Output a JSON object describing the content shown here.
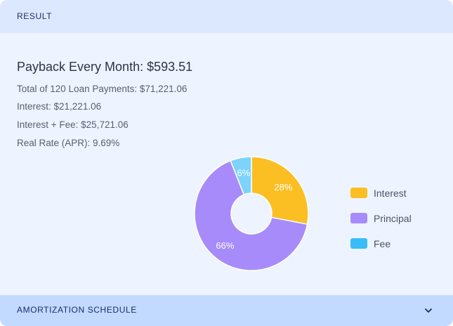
{
  "result": {
    "header": "RESULT",
    "payback": "Payback Every Month: $593.51",
    "total_payments": "Total of 120 Loan Payments: $71,221.06",
    "interest": "Interest: $21,221.06",
    "interest_fee": "Interest + Fee: $25,721.06",
    "apr": "Real Rate (APR): 9.69%"
  },
  "chart_data": {
    "type": "pie",
    "donut": true,
    "categories": [
      "Interest",
      "Principal",
      "Fee"
    ],
    "values": [
      28,
      66,
      6
    ],
    "value_labels": [
      "28%",
      "66%",
      "6%"
    ],
    "colors": [
      "#fbbf24",
      "#a78bfa",
      "#7dd3fc"
    ],
    "legend_colors": [
      "#fbbf24",
      "#a78bfa",
      "#38bdf8"
    ],
    "legend_position": "right"
  },
  "legend": {
    "items": [
      {
        "label": "Interest"
      },
      {
        "label": "Principal"
      },
      {
        "label": "Fee"
      }
    ]
  },
  "amortization": {
    "label": "AMORTIZATION SCHEDULE",
    "icon": "chevron-down-icon"
  }
}
